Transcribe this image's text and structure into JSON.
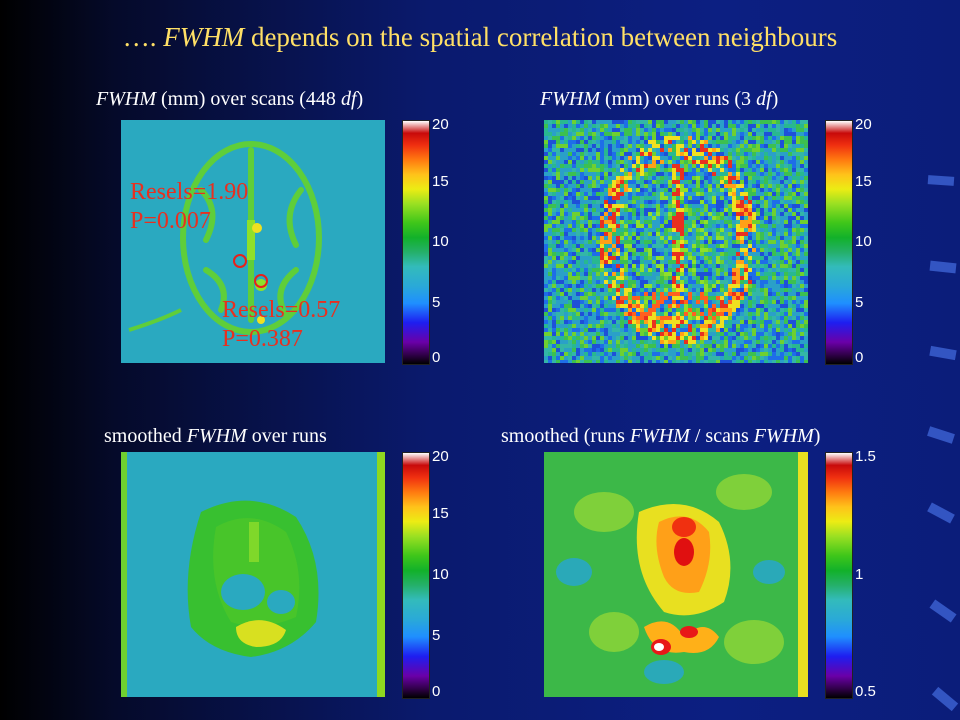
{
  "title": {
    "prefix": "….",
    "emphasis": "FWHM",
    "rest": "depends on the spatial correlation between neighbours"
  },
  "panels": [
    {
      "id": "scans",
      "title_em": "FWHM",
      "title_rest": " (mm) over scans (448 ",
      "title_em2": "df",
      "title_end": ")",
      "colorbar": {
        "min": 0,
        "max": 20,
        "ticks": [
          "20",
          "15",
          "10",
          "5",
          "0"
        ]
      },
      "annotations": [
        {
          "resels": "Resels=1.90",
          "p": "P=0.007"
        },
        {
          "resels": "Resels=0.57",
          "p": "P=0.387"
        }
      ]
    },
    {
      "id": "runs",
      "title_em": "FWHM",
      "title_rest": " (mm) over runs (3 ",
      "title_em2": "df",
      "title_end": ")",
      "colorbar": {
        "min": 0,
        "max": 20,
        "ticks": [
          "20",
          "15",
          "10",
          "5",
          "0"
        ]
      }
    },
    {
      "id": "smoothed-runs",
      "title_pre": "smoothed ",
      "title_em": "FWHM",
      "title_rest": " over runs",
      "colorbar": {
        "min": 0,
        "max": 20,
        "ticks": [
          "20",
          "15",
          "10",
          "5",
          "0"
        ]
      }
    },
    {
      "id": "ratio",
      "title_pre": "smoothed (runs ",
      "title_em": "FWHM",
      "title_mid": " / scans ",
      "title_em2": "FWHM",
      "title_end": ")",
      "colorbar": {
        "min": 0.5,
        "max": 1.5,
        "ticks": [
          "1.5",
          "1",
          "0.5"
        ]
      }
    }
  ],
  "colors": {
    "title": "#ffe066",
    "annotation": "#e83020",
    "map_background": "#2aa9c0"
  }
}
